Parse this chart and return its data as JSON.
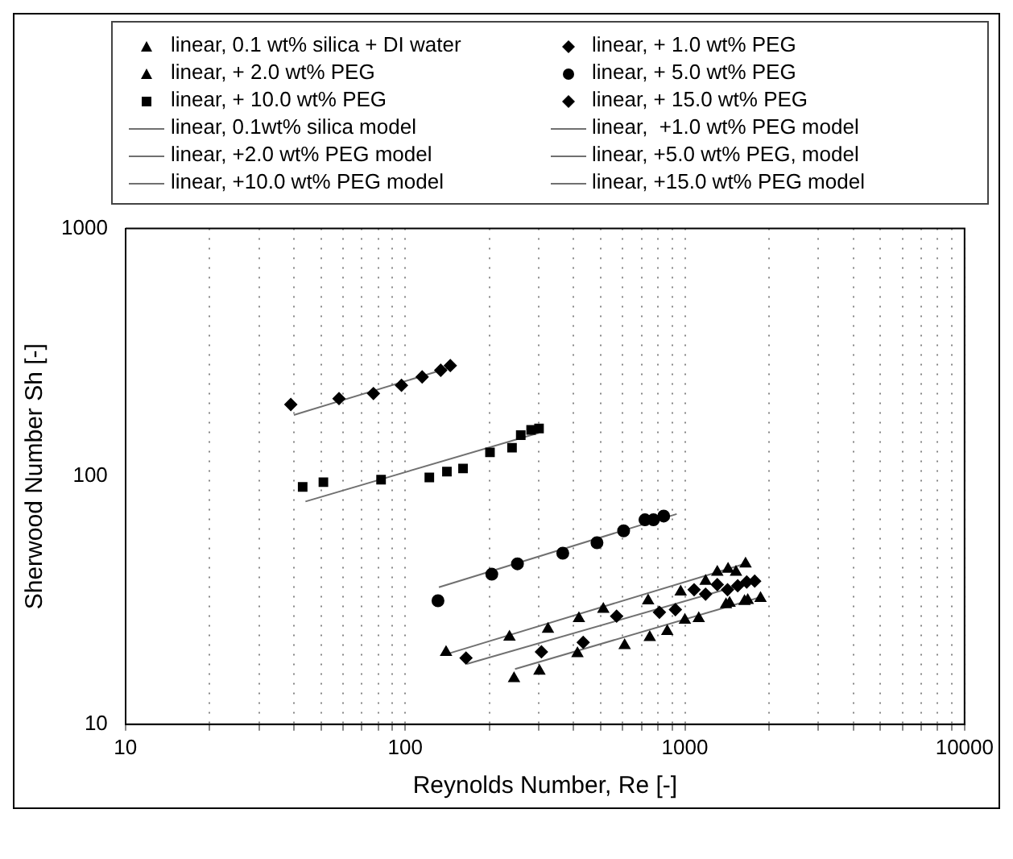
{
  "chart_data": {
    "type": "scatter",
    "xlabel": "Reynolds Number, Re [-]",
    "ylabel": "Sherwood Number Sh [-]",
    "log": "xy",
    "grid": "x",
    "legend": "top",
    "xlim": [
      10,
      10000
    ],
    "ylim": [
      10,
      1000
    ],
    "xticks": [
      10,
      {
        "value": 20,
        "label": null
      },
      {
        "value": 30,
        "label": null
      },
      {
        "value": 40,
        "label": null
      },
      {
        "value": 50,
        "label": null
      },
      {
        "value": 60,
        "label": null
      },
      {
        "value": 70,
        "label": null
      },
      {
        "value": 80,
        "label": null
      },
      {
        "value": 90,
        "label": null
      },
      100,
      {
        "value": 200,
        "label": null
      },
      {
        "value": 300,
        "label": null
      },
      {
        "value": 400,
        "label": null
      },
      {
        "value": 500,
        "label": null
      },
      {
        "value": 600,
        "label": null
      },
      {
        "value": 700,
        "label": null
      },
      {
        "value": 800,
        "label": null
      },
      {
        "value": 900,
        "label": null
      },
      1000,
      {
        "value": 2000,
        "label": null
      },
      {
        "value": 3000,
        "label": null
      },
      {
        "value": 4000,
        "label": null
      },
      {
        "value": 5000,
        "label": null
      },
      {
        "value": 6000,
        "label": null
      },
      {
        "value": 7000,
        "label": null
      },
      {
        "value": 8000,
        "label": null
      },
      {
        "value": 9000,
        "label": null
      },
      10000
    ],
    "yticks": [
      10,
      100,
      1000
    ],
    "series": [
      {
        "name": "linear, 0.1 wt% silica + DI water",
        "type": "scatter",
        "marker": "triangle",
        "color": "#000000",
        "x": [
          140,
          236,
          324,
          418,
          511,
          739,
          966,
          1186,
          1306,
          1427,
          1523,
          1648
        ],
        "values": [
          19.5,
          22.5,
          24.2,
          26.7,
          29.1,
          31.5,
          34.2,
          37.8,
          41.1,
          42.3,
          41.1,
          44.4
        ]
      },
      {
        "name": "linear, + 1.0 wt% PEG",
        "type": "scatter",
        "marker": "diamond",
        "color": "#000000",
        "x": [
          165,
          307,
          433,
          570,
          811,
          925,
          1079,
          1186,
          1306,
          1421,
          1545,
          1664,
          1777
        ],
        "values": [
          18.5,
          19.6,
          21.4,
          27.3,
          28.3,
          29,
          34.9,
          33.5,
          36.6,
          34.9,
          36.2,
          37.5,
          37.8
        ]
      },
      {
        "name": "linear, + 2.0 wt% PEG",
        "type": "scatter",
        "marker": "triangle",
        "color": "#000000",
        "x": [
          245,
          302,
          413,
          609,
          749,
          865,
          1000,
          1121,
          1403,
          1445,
          1634,
          1678,
          1864
        ],
        "values": [
          15.3,
          16.4,
          19.3,
          20.8,
          22.4,
          23.7,
          26.3,
          26.7,
          30.4,
          30.8,
          31.3,
          31.6,
          32.2
        ]
      },
      {
        "name": "linear, + 5.0 wt% PEG",
        "type": "scatter",
        "marker": "circle",
        "color": "#000000",
        "x": [
          131,
          204,
          252,
          366,
          485,
          604,
          720,
          772,
          840
        ],
        "values": [
          31.5,
          40.3,
          44.4,
          49,
          54,
          60.3,
          66.8,
          66.8,
          69.2
        ]
      },
      {
        "name": "linear, + 10.0 wt% PEG",
        "type": "scatter",
        "marker": "square",
        "color": "#000000",
        "x": [
          43,
          51,
          82,
          122,
          141,
          161,
          201,
          241,
          259,
          282,
          301
        ],
        "values": [
          90.7,
          94.8,
          97,
          99,
          104.5,
          107.6,
          125,
          130.5,
          146.7,
          154,
          156
        ]
      },
      {
        "name": "linear, + 15.0 wt% PEG",
        "type": "scatter",
        "marker": "diamond",
        "color": "#000000",
        "x": [
          39,
          58,
          77,
          97,
          115,
          134,
          145
        ],
        "values": [
          195,
          206,
          216,
          233,
          252,
          268,
          280
        ]
      },
      {
        "name": "linear, 0.1wt% silica model",
        "type": "line",
        "marker": "none",
        "color": "#707070",
        "x": [
          141,
          1690
        ],
        "values": [
          19.2,
          44.9
        ]
      },
      {
        "name": "linear,  +1.0 wt% PEG model",
        "type": "line",
        "marker": "none",
        "color": "#707070",
        "x": [
          166,
          1800
        ],
        "values": [
          17.5,
          38
        ]
      },
      {
        "name": "linear, +2.0 wt% PEG model",
        "type": "line",
        "marker": "none",
        "color": "#707070",
        "x": [
          247,
          1887
        ],
        "values": [
          16.7,
          32.7
        ]
      },
      {
        "name": "linear, +5.0 wt% PEG, model",
        "type": "line",
        "marker": "none",
        "color": "#707070",
        "x": [
          132,
          935
        ],
        "values": [
          35.7,
          70.5
        ]
      },
      {
        "name": "linear, +10.0 wt% PEG model",
        "type": "line",
        "marker": "none",
        "color": "#707070",
        "x": [
          44,
          300
        ],
        "values": [
          79.2,
          149.7
        ]
      },
      {
        "name": "linear, +15.0 wt% PEG model",
        "type": "line",
        "marker": "none",
        "color": "#707070",
        "x": [
          40,
          145
        ],
        "values": [
          177,
          275
        ]
      }
    ]
  }
}
